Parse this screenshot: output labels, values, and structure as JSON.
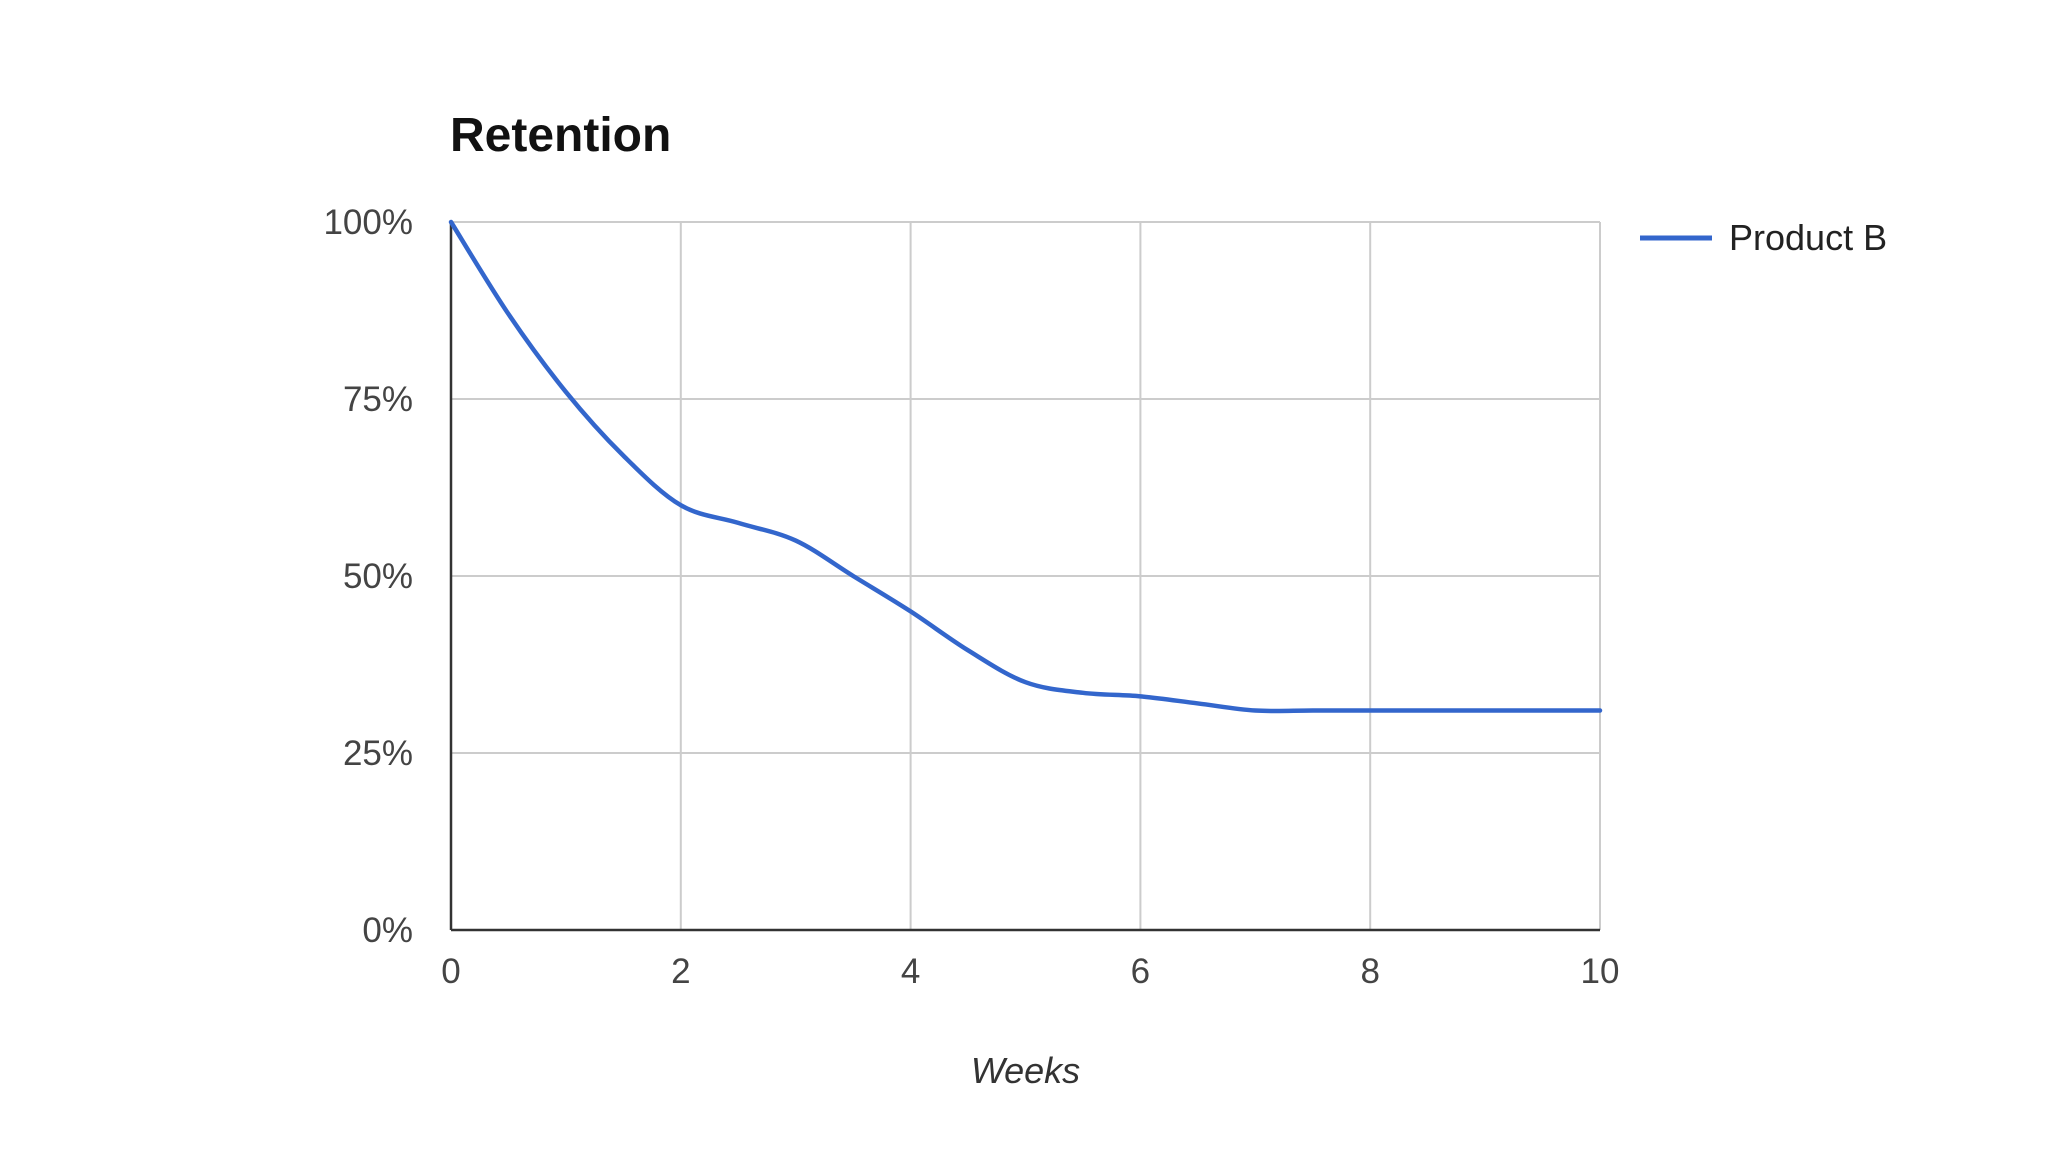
{
  "chart_data": {
    "type": "line",
    "title": "Retention",
    "xlabel": "Weeks",
    "ylabel": "",
    "x": [
      0,
      0.5,
      1,
      1.5,
      2,
      2.5,
      3,
      3.5,
      4,
      4.5,
      5,
      5.5,
      6,
      6.5,
      7,
      7.5,
      8,
      8.5,
      9,
      9.5,
      10
    ],
    "series": [
      {
        "name": "Product B",
        "color": "#3366cc",
        "values": [
          100,
          87,
          76,
          67,
          60,
          57.5,
          55,
          50,
          45,
          39.5,
          35,
          33.5,
          33,
          32,
          31,
          31,
          31,
          31,
          31,
          31,
          31
        ]
      }
    ],
    "xlim": [
      0,
      10
    ],
    "ylim": [
      0,
      100
    ],
    "x_ticks": [
      "0",
      "2",
      "4",
      "6",
      "8",
      "10"
    ],
    "y_ticks": [
      "0%",
      "25%",
      "50%",
      "75%",
      "100%"
    ],
    "grid": true,
    "legend": "right"
  }
}
